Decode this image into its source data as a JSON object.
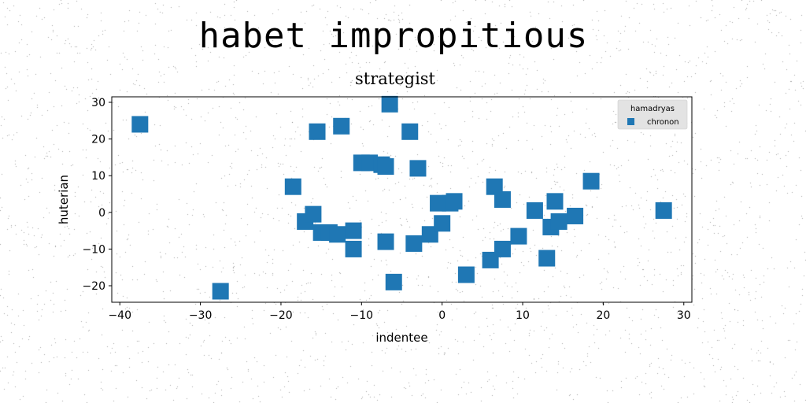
{
  "title": "habet impropitious",
  "chart_data": {
    "type": "scatter",
    "title": "strategist",
    "xlabel": "indentee",
    "ylabel": "huterian",
    "xlim": [
      -41,
      31
    ],
    "ylim": [
      -24.5,
      31.5
    ],
    "xticks": [
      -40,
      -30,
      -20,
      -10,
      0,
      10,
      20,
      30
    ],
    "yticks": [
      -20,
      -10,
      0,
      10,
      20,
      30
    ],
    "grid": false,
    "legend": {
      "title": "hamadryas",
      "placement": "top-right"
    },
    "series": [
      {
        "name": "chronon",
        "color": "#1f77b4",
        "marker": "square",
        "points": [
          {
            "x": -37.5,
            "y": 24
          },
          {
            "x": -27.5,
            "y": -21.5
          },
          {
            "x": -18.5,
            "y": 7
          },
          {
            "x": -17,
            "y": -2.5
          },
          {
            "x": -16,
            "y": -0.5
          },
          {
            "x": -15.5,
            "y": 22
          },
          {
            "x": -15,
            "y": -5.5
          },
          {
            "x": -14,
            "y": -5.5
          },
          {
            "x": -13,
            "y": -6
          },
          {
            "x": -12.5,
            "y": 23.5
          },
          {
            "x": -11,
            "y": -5
          },
          {
            "x": -11,
            "y": -10
          },
          {
            "x": -10,
            "y": 13.5
          },
          {
            "x": -9,
            "y": 13.5
          },
          {
            "x": -7.5,
            "y": 13
          },
          {
            "x": -7,
            "y": 12.5
          },
          {
            "x": -7,
            "y": -8
          },
          {
            "x": -6.5,
            "y": 29.5
          },
          {
            "x": -6,
            "y": -19
          },
          {
            "x": -4,
            "y": 22
          },
          {
            "x": -3.5,
            "y": -8.5
          },
          {
            "x": -3,
            "y": 12
          },
          {
            "x": -1.5,
            "y": -6
          },
          {
            "x": -0.5,
            "y": 2.5
          },
          {
            "x": 0,
            "y": -3
          },
          {
            "x": 1,
            "y": 2.5
          },
          {
            "x": 1.5,
            "y": 3
          },
          {
            "x": 3,
            "y": -17
          },
          {
            "x": 6,
            "y": -13
          },
          {
            "x": 6.5,
            "y": 7
          },
          {
            "x": 7.5,
            "y": 3.5
          },
          {
            "x": 7.5,
            "y": -10
          },
          {
            "x": 9.5,
            "y": -6.5
          },
          {
            "x": 11.5,
            "y": 0.5
          },
          {
            "x": 13,
            "y": -12.5
          },
          {
            "x": 13.5,
            "y": -4
          },
          {
            "x": 14,
            "y": 3
          },
          {
            "x": 14.5,
            "y": -2.5
          },
          {
            "x": 16.5,
            "y": -1
          },
          {
            "x": 18.5,
            "y": 8.5
          },
          {
            "x": 27.5,
            "y": 0.5
          }
        ]
      }
    ]
  }
}
